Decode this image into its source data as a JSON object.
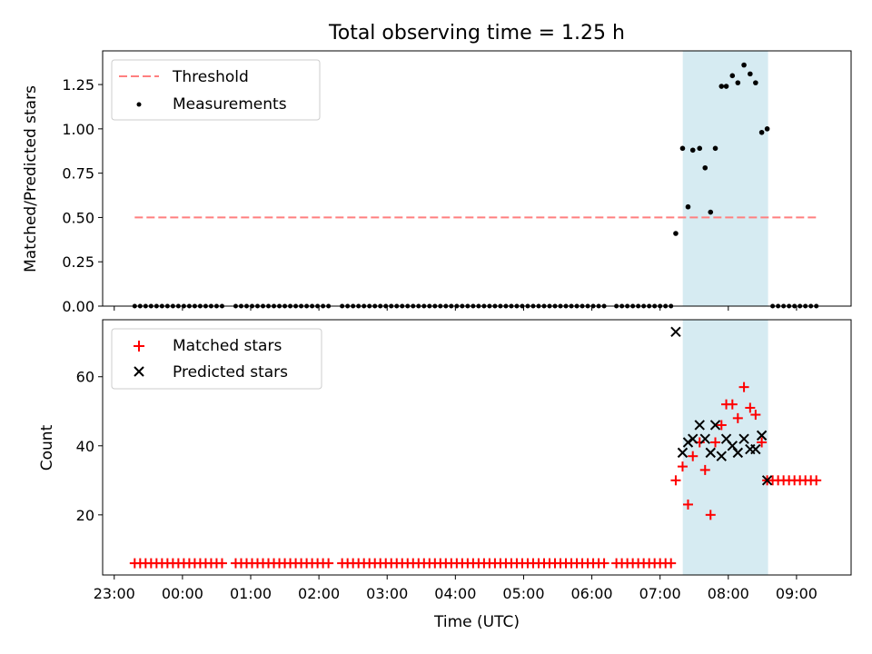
{
  "chart_data": {
    "type": "scatter",
    "title": "Total observing time = 1.25 h",
    "xlabel": "Time (UTC)",
    "x_tick_labels": [
      "23:00",
      "00:00",
      "01:00",
      "02:00",
      "03:00",
      "04:00",
      "05:00",
      "06:00",
      "07:00",
      "08:00",
      "09:00"
    ],
    "x_ticks_hours": [
      -1,
      0,
      1,
      2,
      3,
      4,
      5,
      6,
      7,
      8,
      9
    ],
    "xlim_hours": [
      -1.17,
      9.8
    ],
    "shaded_region": {
      "start_hour": 7.333,
      "end_hour": 8.583,
      "color": "#add8e6"
    },
    "top": {
      "ylabel": "Matched/Predicted stars",
      "ylim": [
        0,
        1.44
      ],
      "y_ticks": [
        0.0,
        0.25,
        0.5,
        0.75,
        1.0,
        1.25
      ],
      "y_tick_labels": [
        "0.00",
        "0.25",
        "0.50",
        "0.75",
        "1.00",
        "1.25"
      ],
      "threshold": {
        "name": "Threshold",
        "value": 0.5,
        "x_start_hour": -0.7,
        "x_end_hour": 9.33,
        "color": "#ff7f7f"
      },
      "measurements": {
        "name": "Measurements",
        "color": "#000000",
        "zero_x_hours": [
          -0.7,
          -0.62,
          -0.54,
          -0.46,
          -0.38,
          -0.3,
          -0.22,
          -0.14,
          -0.06,
          0.02,
          0.1,
          0.18,
          0.26,
          0.34,
          0.42,
          0.5,
          0.58,
          0.78,
          0.86,
          0.94,
          1.02,
          1.1,
          1.18,
          1.26,
          1.34,
          1.42,
          1.5,
          1.58,
          1.66,
          1.74,
          1.82,
          1.9,
          1.98,
          2.06,
          2.14,
          2.34,
          2.42,
          2.5,
          2.58,
          2.66,
          2.74,
          2.82,
          2.9,
          2.98,
          3.06,
          3.14,
          3.22,
          3.3,
          3.38,
          3.46,
          3.54,
          3.62,
          3.7,
          3.78,
          3.86,
          3.94,
          4.02,
          4.1,
          4.18,
          4.26,
          4.34,
          4.42,
          4.5,
          4.58,
          4.66,
          4.74,
          4.82,
          4.9,
          4.98,
          5.06,
          5.14,
          5.22,
          5.3,
          5.38,
          5.46,
          5.54,
          5.62,
          5.7,
          5.78,
          5.86,
          5.94,
          6.02,
          6.1,
          6.18,
          6.36,
          6.44,
          6.52,
          6.6,
          6.68,
          6.76,
          6.84,
          6.92,
          7.0,
          7.08,
          7.16,
          8.65,
          8.73,
          8.81,
          8.89,
          8.97,
          9.05,
          9.13,
          9.21,
          9.29
        ],
        "points": [
          {
            "x": 7.23,
            "y": 0.41
          },
          {
            "x": 7.33,
            "y": 0.89
          },
          {
            "x": 7.41,
            "y": 0.56
          },
          {
            "x": 7.48,
            "y": 0.88
          },
          {
            "x": 7.58,
            "y": 0.89
          },
          {
            "x": 7.66,
            "y": 0.78
          },
          {
            "x": 7.74,
            "y": 0.53
          },
          {
            "x": 7.81,
            "y": 0.89
          },
          {
            "x": 7.9,
            "y": 1.24
          },
          {
            "x": 7.97,
            "y": 1.24
          },
          {
            "x": 8.06,
            "y": 1.3
          },
          {
            "x": 8.14,
            "y": 1.26
          },
          {
            "x": 8.23,
            "y": 1.36
          },
          {
            "x": 8.32,
            "y": 1.31
          },
          {
            "x": 8.4,
            "y": 1.26
          },
          {
            "x": 8.49,
            "y": 0.98
          },
          {
            "x": 8.57,
            "y": 1.0
          }
        ]
      }
    },
    "bottom": {
      "ylabel": "Count",
      "ylim": [
        2.6,
        76.5
      ],
      "y_ticks": [
        20,
        40,
        60
      ],
      "y_tick_labels": [
        "20",
        "40",
        "60"
      ],
      "matched": {
        "name": "Matched stars",
        "color": "#ff0000",
        "baseline_value": 6,
        "baseline_x_hours": [
          -0.7,
          -0.62,
          -0.54,
          -0.46,
          -0.38,
          -0.3,
          -0.22,
          -0.14,
          -0.06,
          0.02,
          0.1,
          0.18,
          0.26,
          0.34,
          0.42,
          0.5,
          0.58,
          0.78,
          0.86,
          0.94,
          1.02,
          1.1,
          1.18,
          1.26,
          1.34,
          1.42,
          1.5,
          1.58,
          1.66,
          1.74,
          1.82,
          1.9,
          1.98,
          2.06,
          2.14,
          2.34,
          2.42,
          2.5,
          2.58,
          2.66,
          2.74,
          2.82,
          2.9,
          2.98,
          3.06,
          3.14,
          3.22,
          3.3,
          3.38,
          3.46,
          3.54,
          3.62,
          3.7,
          3.78,
          3.86,
          3.94,
          4.02,
          4.1,
          4.18,
          4.26,
          4.34,
          4.42,
          4.5,
          4.58,
          4.66,
          4.74,
          4.82,
          4.9,
          4.98,
          5.06,
          5.14,
          5.22,
          5.3,
          5.38,
          5.46,
          5.54,
          5.62,
          5.7,
          5.78,
          5.86,
          5.94,
          6.02,
          6.1,
          6.18,
          6.36,
          6.44,
          6.52,
          6.6,
          6.68,
          6.76,
          6.84,
          6.92,
          7.0,
          7.08,
          7.16
        ],
        "tail_value": 30,
        "tail_x_hours": [
          8.65,
          8.73,
          8.81,
          8.89,
          8.97,
          9.05,
          9.13,
          9.21,
          9.29
        ],
        "points": [
          {
            "x": 7.23,
            "y": 30
          },
          {
            "x": 7.33,
            "y": 34
          },
          {
            "x": 7.41,
            "y": 23
          },
          {
            "x": 7.48,
            "y": 37
          },
          {
            "x": 7.58,
            "y": 41
          },
          {
            "x": 7.66,
            "y": 33
          },
          {
            "x": 7.74,
            "y": 20
          },
          {
            "x": 7.81,
            "y": 41
          },
          {
            "x": 7.9,
            "y": 46
          },
          {
            "x": 7.97,
            "y": 52
          },
          {
            "x": 8.06,
            "y": 52
          },
          {
            "x": 8.14,
            "y": 48
          },
          {
            "x": 8.23,
            "y": 57
          },
          {
            "x": 8.32,
            "y": 51
          },
          {
            "x": 8.4,
            "y": 49
          },
          {
            "x": 8.49,
            "y": 41
          },
          {
            "x": 8.57,
            "y": 30
          }
        ]
      },
      "predicted": {
        "name": "Predicted stars",
        "color": "#000000",
        "points": [
          {
            "x": 7.23,
            "y": 73
          },
          {
            "x": 7.33,
            "y": 38
          },
          {
            "x": 7.41,
            "y": 41
          },
          {
            "x": 7.48,
            "y": 42
          },
          {
            "x": 7.58,
            "y": 46
          },
          {
            "x": 7.66,
            "y": 42
          },
          {
            "x": 7.74,
            "y": 38
          },
          {
            "x": 7.81,
            "y": 46
          },
          {
            "x": 7.9,
            "y": 37
          },
          {
            "x": 7.97,
            "y": 42
          },
          {
            "x": 8.06,
            "y": 40
          },
          {
            "x": 8.14,
            "y": 38
          },
          {
            "x": 8.23,
            "y": 42
          },
          {
            "x": 8.32,
            "y": 39
          },
          {
            "x": 8.4,
            "y": 39
          },
          {
            "x": 8.49,
            "y": 43
          },
          {
            "x": 8.57,
            "y": 30
          }
        ]
      }
    }
  }
}
